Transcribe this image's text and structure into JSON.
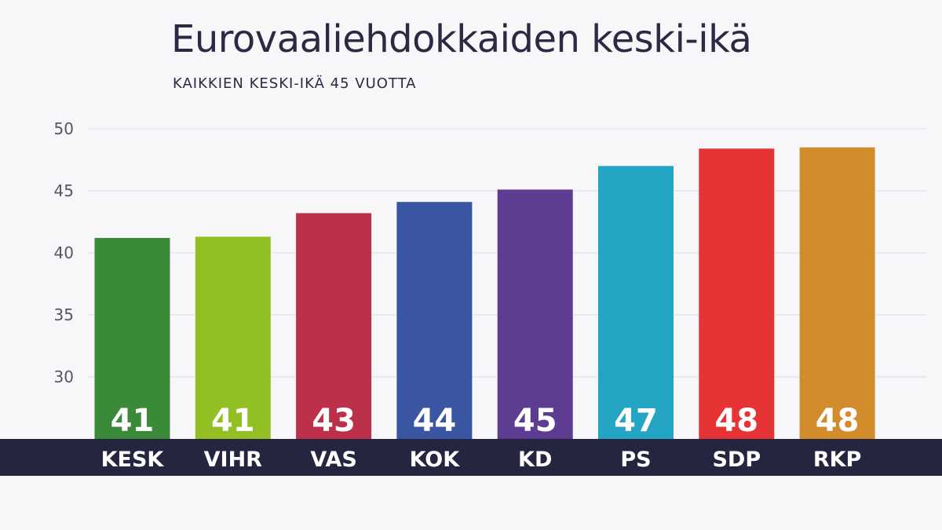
{
  "chart_data": {
    "type": "bar",
    "title": "Eurovaaliehdokkaiden keski-ikä",
    "subtitle": "KAIKKIEN KESKI-IKÄ 45 VUOTTA",
    "categories": [
      "KESK",
      "VIHR",
      "VAS",
      "KOK",
      "KD",
      "PS",
      "SDP",
      "RKP"
    ],
    "values": [
      41.2,
      41.3,
      43.2,
      44.1,
      45.1,
      47.0,
      48.4,
      48.5
    ],
    "value_labels": [
      "41",
      "41",
      "43",
      "44",
      "45",
      "47",
      "48",
      "48"
    ],
    "colors": [
      "#3b8a3a",
      "#92c024",
      "#bd3049",
      "#3a56a3",
      "#5d3d91",
      "#23a5c3",
      "#e63335",
      "#d28c2b"
    ],
    "ylim": [
      25,
      50
    ],
    "yticks": [
      "30",
      "35",
      "40",
      "45",
      "50"
    ],
    "grid": true,
    "legend": "none"
  },
  "colors": {
    "axis_band": "#262540",
    "text": "#2b2a44",
    "background": "#f7f7f9"
  }
}
